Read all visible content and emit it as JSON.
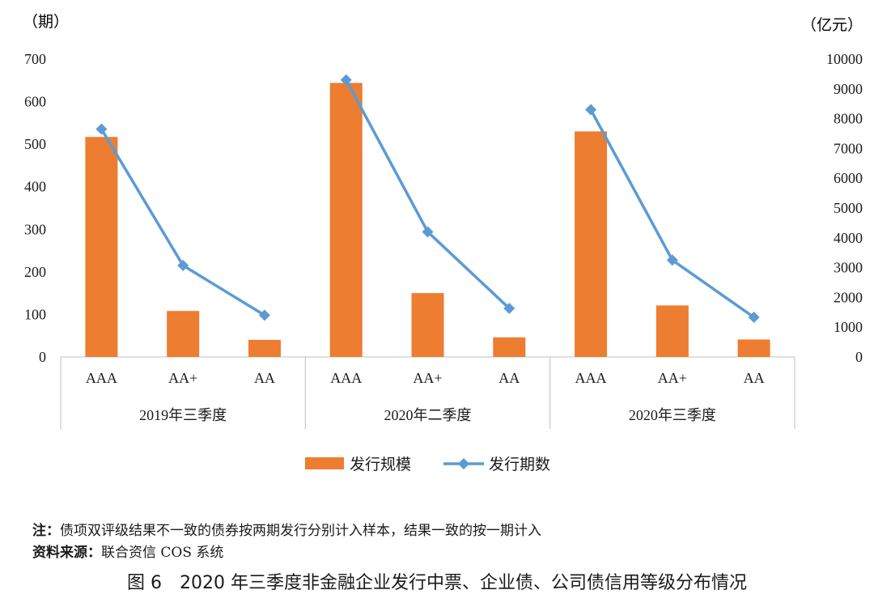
{
  "chart_data": {
    "type": "bar",
    "groups": [
      "2019年三季度",
      "2020年二季度",
      "2020年三季度"
    ],
    "categories": [
      "AAA",
      "AA+",
      "AA"
    ],
    "left_axis": {
      "unit": "（期）",
      "ylim": [
        0,
        700
      ],
      "ticks": [
        0,
        100,
        200,
        300,
        400,
        500,
        600,
        700
      ]
    },
    "right_axis": {
      "unit": "（亿元）",
      "ylim": [
        0,
        10000
      ],
      "ticks": [
        0,
        1000,
        2000,
        3000,
        4000,
        5000,
        6000,
        7000,
        8000,
        9000,
        10000
      ]
    },
    "series": [
      {
        "name": "发行规模",
        "type": "bar",
        "axis": "left",
        "color": "#ED7D31",
        "values": [
          [
            517,
            108,
            40
          ],
          [
            644,
            150,
            46
          ],
          [
            530,
            121,
            41
          ]
        ]
      },
      {
        "name": "发行期数",
        "type": "line",
        "axis": "right",
        "color": "#5B9BD5",
        "values": [
          [
            7650,
            3070,
            1400
          ],
          [
            9300,
            4200,
            1630
          ],
          [
            8300,
            3250,
            1330
          ]
        ]
      }
    ],
    "legend_position": "bottom",
    "grid": false
  },
  "notes": {
    "note_label": "注：",
    "note_text": "债项双评级结果不一致的债券按两期发行分别计入样本，结果一致的按一期计入",
    "source_label": "资料来源：",
    "source_text": "联合资信 COS 系统"
  },
  "caption": "图 6　2020 年三季度非金融企业发行中票、企业债、公司债信用等级分布情况"
}
